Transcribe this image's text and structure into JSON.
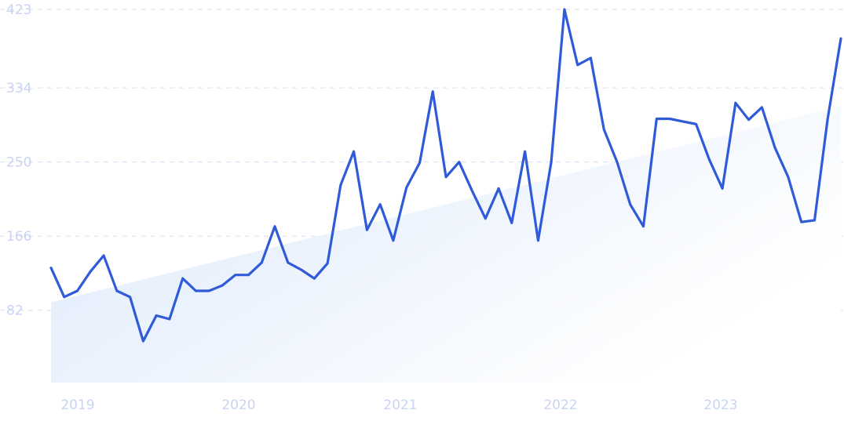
{
  "chart_data": {
    "type": "line",
    "ylim": [
      0,
      423
    ],
    "y_ticks": [
      "82",
      "166",
      "250",
      "334",
      "423"
    ],
    "x_ticks": [
      "2019",
      "2020",
      "2021",
      "2022",
      "2023"
    ],
    "grid": true,
    "colors": {
      "line": "#2f5bd8",
      "trend_fill_top": "#dce9fb",
      "grid": "#d7def3",
      "tick_text": "#c9d3f2"
    },
    "trend": {
      "start": 91,
      "end": 313
    },
    "series": [
      {
        "values": [
          130,
          97,
          104,
          126,
          144,
          104,
          97,
          47,
          76,
          72,
          118,
          104,
          104,
          110,
          122,
          122,
          136,
          177,
          136,
          128,
          118,
          135,
          224,
          262,
          173,
          202,
          161,
          221,
          249,
          330,
          233,
          250,
          217,
          186,
          220,
          181,
          262,
          161,
          250,
          423,
          360,
          368,
          287,
          250,
          202,
          177,
          299,
          299,
          296,
          293,
          253,
          220,
          317,
          298,
          312,
          266,
          233,
          182,
          184,
          299,
          390
        ]
      }
    ]
  }
}
